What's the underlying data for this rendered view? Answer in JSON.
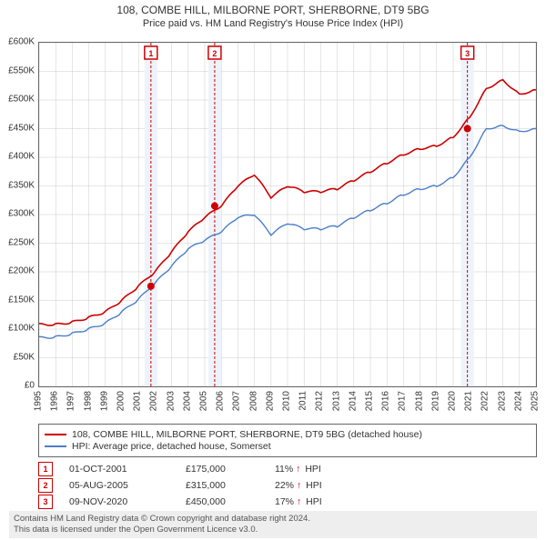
{
  "header": {
    "title": "108, COMBE HILL, MILBORNE PORT, SHERBORNE, DT9 5BG",
    "subtitle": "Price paid vs. HM Land Registry's House Price Index (HPI)"
  },
  "chart": {
    "type": "line",
    "background_color": "#ffffff",
    "grid_color": "#cccccc",
    "axis_color": "#666666",
    "x_years": [
      1995,
      1996,
      1997,
      1998,
      1999,
      2000,
      2001,
      2002,
      2003,
      2004,
      2005,
      2006,
      2007,
      2008,
      2009,
      2010,
      2011,
      2012,
      2013,
      2014,
      2015,
      2016,
      2017,
      2018,
      2019,
      2020,
      2021,
      2022,
      2023,
      2024,
      2025
    ],
    "ylim": [
      0,
      600000
    ],
    "ytick_step": 50000,
    "ytick_labels": [
      "£0",
      "£50K",
      "£100K",
      "£150K",
      "£200K",
      "£250K",
      "£300K",
      "£350K",
      "£400K",
      "£450K",
      "£500K",
      "£550K",
      "£600K"
    ],
    "series": [
      {
        "name": "property",
        "label": "108, COMBE HILL, MILBORNE PORT, SHERBORNE, DT9 5BG (detached house)",
        "color": "#cc0000",
        "line_width": 1.6,
        "values_by_year": {
          "1995": 108000,
          "1996": 108000,
          "1997": 112000,
          "1998": 120000,
          "1999": 130000,
          "2000": 150000,
          "2001": 175000,
          "2002": 200000,
          "2003": 235000,
          "2004": 270000,
          "2005": 295000,
          "2006": 315000,
          "2007": 350000,
          "2008": 370000,
          "2009": 330000,
          "2010": 350000,
          "2011": 340000,
          "2012": 340000,
          "2013": 345000,
          "2014": 360000,
          "2015": 375000,
          "2016": 390000,
          "2017": 405000,
          "2018": 415000,
          "2019": 420000,
          "2020": 435000,
          "2021": 470000,
          "2022": 520000,
          "2023": 535000,
          "2024": 510000,
          "2025": 518000
        }
      },
      {
        "name": "hpi",
        "label": "HPI: Average price, detached house, Somerset",
        "color": "#4a7ec8",
        "line_width": 1.4,
        "values_by_year": {
          "1995": 85000,
          "1996": 86000,
          "1997": 92000,
          "1998": 100000,
          "1999": 110000,
          "2000": 130000,
          "2001": 152000,
          "2002": 180000,
          "2003": 210000,
          "2004": 240000,
          "2005": 255000,
          "2006": 270000,
          "2007": 295000,
          "2008": 300000,
          "2009": 265000,
          "2010": 285000,
          "2011": 275000,
          "2012": 275000,
          "2013": 280000,
          "2014": 295000,
          "2015": 308000,
          "2016": 320000,
          "2017": 335000,
          "2018": 345000,
          "2019": 350000,
          "2020": 365000,
          "2021": 400000,
          "2022": 450000,
          "2023": 455000,
          "2024": 445000,
          "2025": 450000
        }
      }
    ],
    "sales_markers": [
      {
        "n": "1",
        "year_frac": 2001.75,
        "value": 175000
      },
      {
        "n": "2",
        "year_frac": 2005.6,
        "value": 315000
      },
      {
        "n": "3",
        "year_frac": 2020.86,
        "value": 450000
      }
    ],
    "marker_band_color": "#eef3fb",
    "marker_line_color": "#cc0000",
    "marker_dot_color": "#cc0000",
    "marker_box_border": "#cc0000"
  },
  "sales_table": [
    {
      "n": "1",
      "date": "01-OCT-2001",
      "price": "£175,000",
      "hpi_pct": "11%",
      "hpi_dir": "↑",
      "hpi_suffix": "HPI"
    },
    {
      "n": "2",
      "date": "05-AUG-2005",
      "price": "£315,000",
      "hpi_pct": "22%",
      "hpi_dir": "↑",
      "hpi_suffix": "HPI"
    },
    {
      "n": "3",
      "date": "09-NOV-2020",
      "price": "£450,000",
      "hpi_pct": "17%",
      "hpi_dir": "↑",
      "hpi_suffix": "HPI"
    }
  ],
  "footer": {
    "line1": "Contains HM Land Registry data © Crown copyright and database right 2024.",
    "line2": "This data is licensed under the Open Government Licence v3.0."
  }
}
